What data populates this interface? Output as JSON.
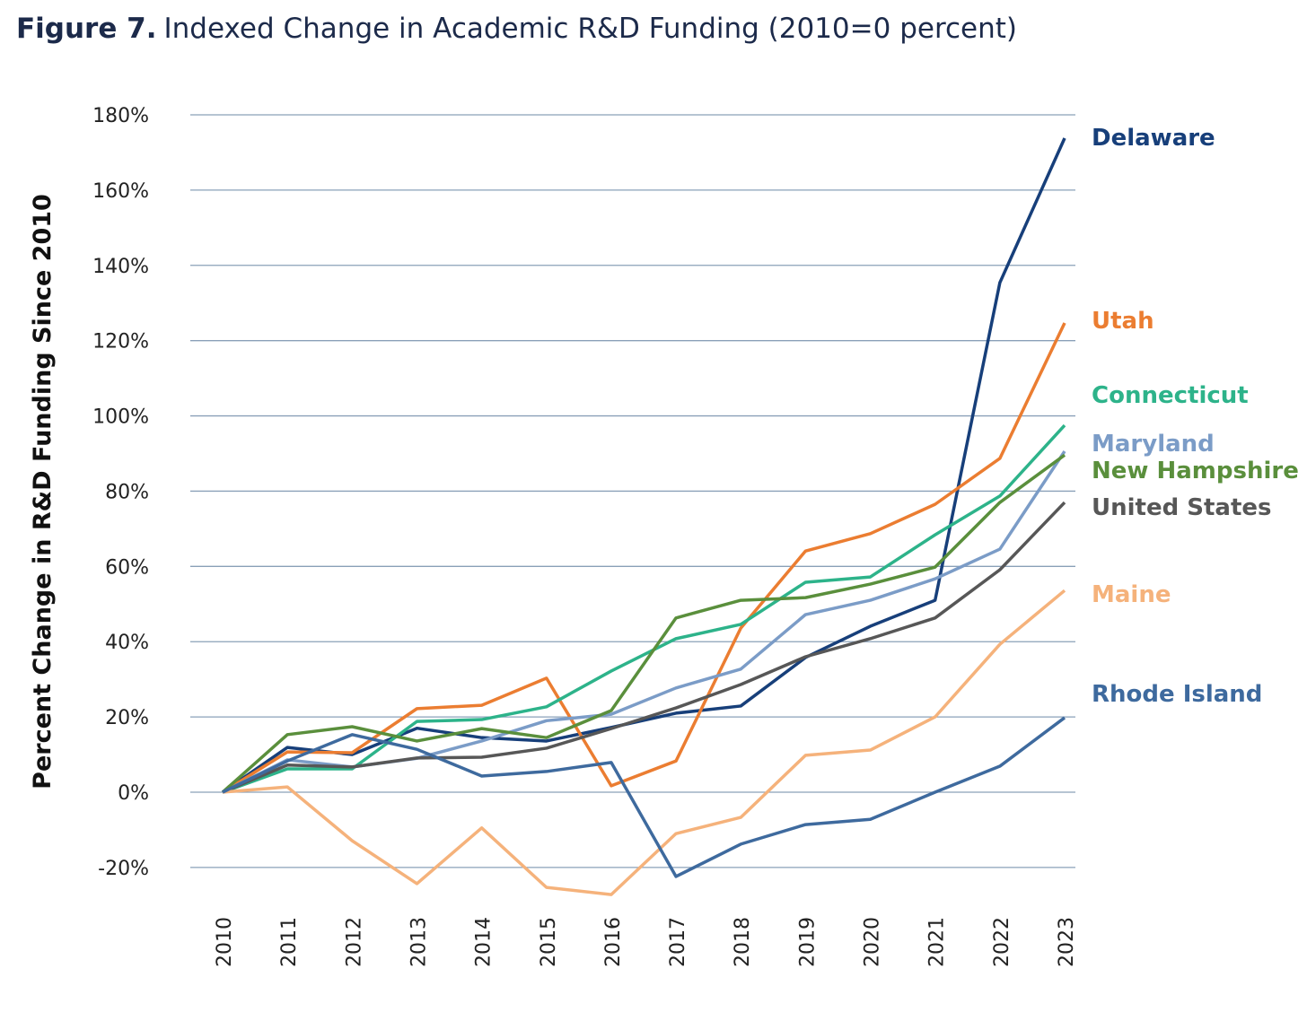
{
  "chart_data": {
    "type": "line",
    "title_prefix": "Figure 7.",
    "title": "Indexed Change in Academic R&D Funding (2010=0 percent)",
    "xlabel": "",
    "ylabel": "Percent Change in R&D Funding Since 2010",
    "ylim": [
      -20,
      180
    ],
    "yticks": [
      -20,
      0,
      20,
      40,
      60,
      80,
      100,
      120,
      140,
      160,
      180
    ],
    "ytick_labels": [
      "-20%",
      "0%",
      "20%",
      "40%",
      "60%",
      "80%",
      "100%",
      "120%",
      "140%",
      "160%",
      "180%"
    ],
    "grid": true,
    "legend": "direct labels at right end of lines",
    "x": [
      "2010",
      "2011",
      "2012",
      "2013",
      "2014",
      "2015",
      "2016",
      "2017",
      "2018",
      "2019",
      "2020",
      "2021",
      "2022",
      "2023"
    ],
    "series": [
      {
        "name": "Delaware",
        "color": "#173f7a",
        "values": [
          0,
          11.9,
          10,
          17,
          14.5,
          13.6,
          17.2,
          21,
          22.9,
          35.8,
          44.1,
          51,
          135.4,
          173.8
        ]
      },
      {
        "name": "Utah",
        "color": "#eb7d31",
        "values": [
          0,
          10.7,
          10.5,
          22.2,
          23.1,
          30.3,
          1.7,
          8.3,
          43.6,
          64.1,
          68.7,
          76.5,
          88.7,
          124.7
        ]
      },
      {
        "name": "Connecticut",
        "color": "#2db38a",
        "values": [
          0,
          6.2,
          6.2,
          18.8,
          19.3,
          22.7,
          32.2,
          40.8,
          44.6,
          55.8,
          57.2,
          68.4,
          78.7,
          97.5
        ]
      },
      {
        "name": "Maryland",
        "color": "#7b9cc7",
        "values": [
          0,
          8.6,
          6.7,
          9,
          13.6,
          19,
          20.7,
          27.7,
          32.7,
          47.2,
          51,
          56.7,
          64.6,
          90.6
        ]
      },
      {
        "name": "New Hampshire",
        "color": "#5a8f3c",
        "values": [
          0,
          15.3,
          17.4,
          13.6,
          16.9,
          14.5,
          21.7,
          46.3,
          51,
          51.7,
          55.3,
          59.8,
          77,
          89.6
        ]
      },
      {
        "name": "United States",
        "color": "#575757",
        "values": [
          0,
          7.2,
          6.7,
          9.1,
          9.3,
          11.7,
          16.9,
          22.4,
          28.6,
          36,
          40.8,
          46.3,
          59.1,
          77
        ]
      },
      {
        "name": "Maine",
        "color": "#f5b27b",
        "values": [
          0,
          1.4,
          -12.9,
          -24.3,
          -9.5,
          -25.3,
          -27.2,
          -11,
          -6.7,
          9.8,
          11.2,
          20,
          39.3,
          53.6
        ]
      },
      {
        "name": "Rhode Island",
        "color": "#3e6a9e",
        "values": [
          0,
          8.3,
          15.3,
          11.4,
          4.3,
          5.5,
          7.9,
          -22.4,
          -13.8,
          -8.6,
          -7.2,
          0,
          6.9,
          19.8
        ]
      }
    ]
  }
}
